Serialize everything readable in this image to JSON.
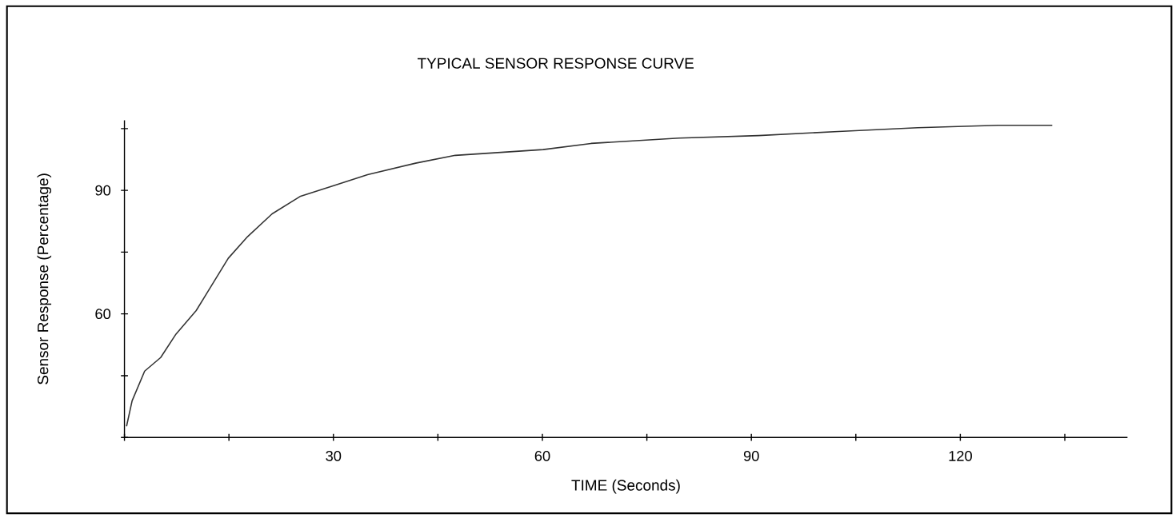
{
  "chart_data": {
    "type": "line",
    "title": "TYPICAL SENSOR RESPONSE CURVE",
    "xlabel": "TIME (Seconds)",
    "ylabel": "Sensor Response (Percentage)",
    "x": [
      0.3,
      1.1,
      2.9,
      5.2,
      7.4,
      10.3,
      12.0,
      14.9,
      17.7,
      21.2,
      25.2,
      30.3,
      34.9,
      41.8,
      47.5,
      60.1,
      67.0,
      79.6,
      91.0,
      102.5,
      113.9,
      125.4,
      133.2
    ],
    "values": [
      32.7,
      38.9,
      46.1,
      49.4,
      55.1,
      60.8,
      65.5,
      73.5,
      78.8,
      84.3,
      88.5,
      91.3,
      93.8,
      96.6,
      98.5,
      99.9,
      101.4,
      102.7,
      103.3,
      104.3,
      105.2,
      105.8,
      105.8
    ],
    "color": "#333333",
    "xlim": [
      0,
      144
    ],
    "ylim": [
      30,
      107
    ],
    "xticks": [
      {
        "value": 0,
        "label": null
      },
      {
        "value": 15,
        "label": null
      },
      30,
      {
        "value": 45,
        "label": null
      },
      60,
      {
        "value": 75,
        "label": null
      },
      90,
      {
        "value": 105,
        "label": null
      },
      120,
      {
        "value": 135,
        "label": null
      }
    ],
    "yticks": [
      {
        "value": 30,
        "label": null
      },
      {
        "value": 45,
        "label": null
      },
      60,
      {
        "value": 75,
        "label": null
      },
      90,
      {
        "value": 105,
        "label": null
      }
    ],
    "grid": false,
    "marker": "none",
    "line_style": "solid"
  }
}
